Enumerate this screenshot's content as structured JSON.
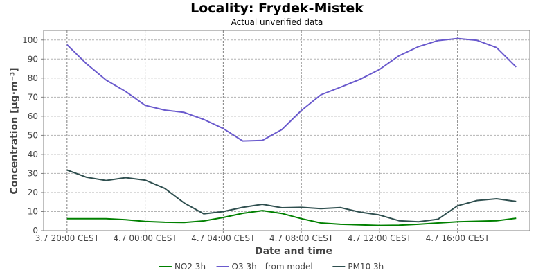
{
  "header": {
    "title": "Locality: Frydek-Mistek",
    "subtitle": "Actual unverified data"
  },
  "chart_data": {
    "type": "line",
    "title": "Locality: Frydek-Mistek",
    "subtitle": "Actual unverified data",
    "xlabel": "Date and time",
    "ylabel": "Concentration [µg·m⁻³]",
    "ylim": [
      0,
      105
    ],
    "yticks": [
      0,
      10,
      20,
      30,
      40,
      50,
      60,
      70,
      80,
      90,
      100
    ],
    "x_start": "3.7 20:00 CEST",
    "x_step_hours": 1,
    "x": [
      "3.7 20:00",
      "3.7 21:00",
      "3.7 22:00",
      "3.7 23:00",
      "4.7 00:00",
      "4.7 01:00",
      "4.7 02:00",
      "4.7 03:00",
      "4.7 04:00",
      "4.7 05:00",
      "4.7 06:00",
      "4.7 07:00",
      "4.7 08:00",
      "4.7 09:00",
      "4.7 10:00",
      "4.7 11:00",
      "4.7 12:00",
      "4.7 13:00",
      "4.7 14:00",
      "4.7 15:00",
      "4.7 16:00",
      "4.7 17:00",
      "4.7 18:00",
      "4.7 19:00"
    ],
    "xticks": [
      {
        "index": 0,
        "label": "3.7 20:00 CEST"
      },
      {
        "index": 4,
        "label": "4.7 00:00 CEST"
      },
      {
        "index": 8,
        "label": "4.7 04:00 CEST"
      },
      {
        "index": 12,
        "label": "4.7 08:00 CEST"
      },
      {
        "index": 16,
        "label": "4.7 12:00 CEST"
      },
      {
        "index": 20,
        "label": "4.7 16:00 CEST"
      }
    ],
    "xlim_index": [
      -1.2,
      23.7
    ],
    "grid": true,
    "legend_position": "bottom",
    "series": [
      {
        "name": "NO2 3h",
        "color": "#008000",
        "values": [
          6.3,
          6.3,
          6.3,
          5.7,
          4.8,
          4.4,
          4.3,
          5.1,
          6.9,
          9.1,
          10.5,
          9.0,
          6.3,
          4.0,
          3.3,
          3.0,
          2.7,
          2.8,
          3.3,
          4.0,
          4.6,
          4.9,
          5.2,
          6.5
        ]
      },
      {
        "name": "O3 3h - from model",
        "color": "#6a5acd",
        "values": [
          97.5,
          87.5,
          79.0,
          73.0,
          65.7,
          63.2,
          62.0,
          58.3,
          53.5,
          47.0,
          47.3,
          53.0,
          63.0,
          71.2,
          75.2,
          79.3,
          84.5,
          91.7,
          96.5,
          99.7,
          100.8,
          99.8,
          96.0,
          85.8
        ]
      },
      {
        "name": "PM10 3h",
        "color": "#2f4f4f",
        "values": [
          31.8,
          28.0,
          26.3,
          27.8,
          26.5,
          22.2,
          14.5,
          8.8,
          10.0,
          12.2,
          13.8,
          12.0,
          12.2,
          11.5,
          12.1,
          9.7,
          8.2,
          5.2,
          4.6,
          6.0,
          13.0,
          15.8,
          16.7,
          15.3
        ]
      }
    ]
  }
}
